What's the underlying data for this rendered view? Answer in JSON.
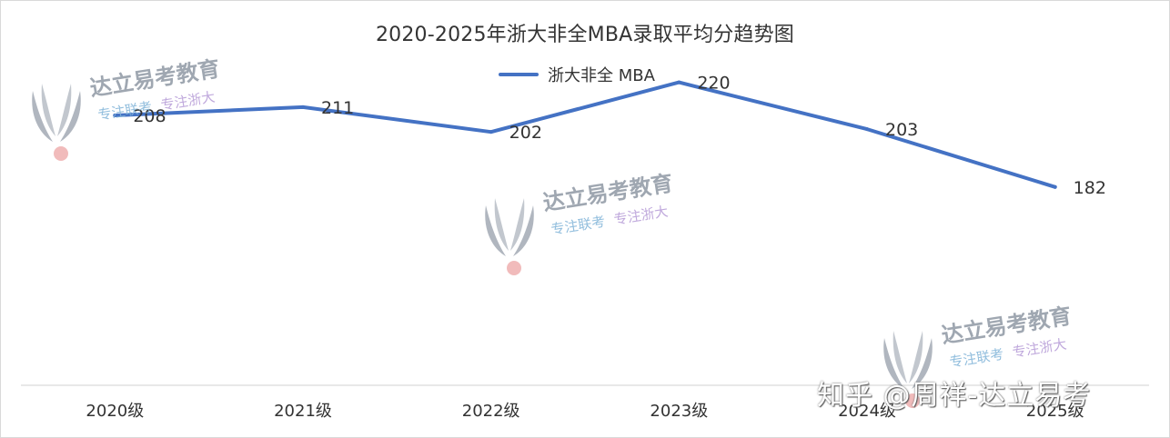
{
  "chart_data": {
    "type": "line",
    "title": "2020-2025年浙大非全MBA录取平均分趋势图",
    "categories": [
      "2020级",
      "2021级",
      "2022级",
      "2023级",
      "2024级",
      "2025级"
    ],
    "series": [
      {
        "name": "浙大非全 MBA",
        "values": [
          208,
          211,
          202,
          220,
          203,
          182
        ],
        "color": "#4472c4"
      }
    ],
    "data_labels": true,
    "ylim": [
      110,
      240
    ],
    "grid": false,
    "legend_position": "top-center"
  },
  "watermark": {
    "brand": "达立易考教育",
    "sub_a": "专注联考",
    "sub_b": "专注浙大",
    "logo_icon": "v-wing-logo-icon"
  },
  "attribution": "知乎 @周祥-达立易考"
}
